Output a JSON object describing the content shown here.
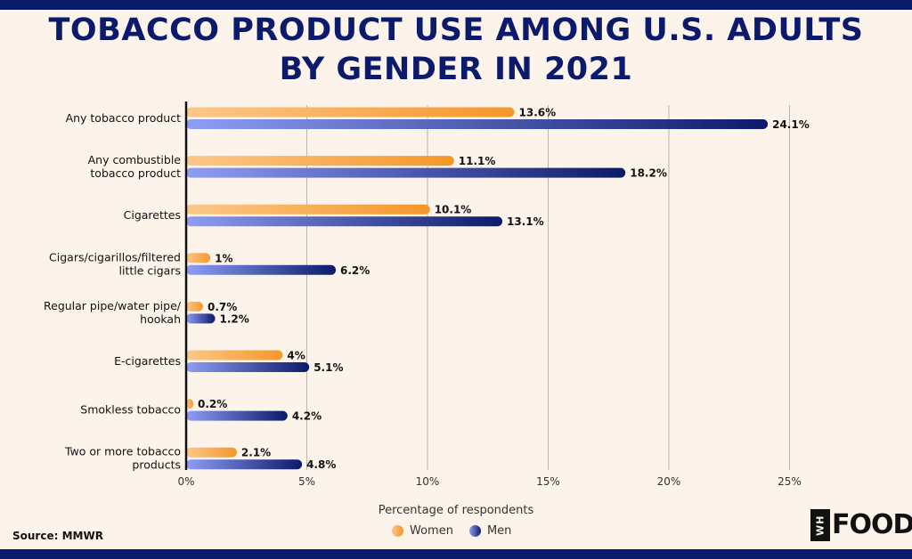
{
  "title": "TOBACCO PRODUCT USE AMONG U.S. ADULTS BY GENDER IN 2021",
  "source": "Source: MMWR",
  "brand": {
    "mark": "WH",
    "name": "FOODS"
  },
  "colors": {
    "background": "#fcf3ea",
    "title": "#0c1a6b",
    "women_light": "#fbc88a",
    "women_dark": "#f5972a",
    "men_light": "#8f9ef5",
    "men_dark": "#0c1a6b"
  },
  "chart_data": {
    "type": "bar",
    "orientation": "horizontal",
    "title": "TOBACCO PRODUCT USE AMONG U.S. ADULTS BY GENDER IN 2021",
    "xlabel": "Percentage of respondents",
    "ylabel": "",
    "xlim": [
      0,
      25
    ],
    "xticks": [
      0,
      5,
      10,
      15,
      20,
      25
    ],
    "xtick_labels": [
      "0%",
      "5%",
      "10%",
      "15%",
      "20%",
      "25%"
    ],
    "grid": "vertical",
    "legend_position": "bottom-center",
    "categories": [
      "Any tobacco product",
      "Any combustible tobacco product",
      "Cigarettes",
      "Cigars/cigarillos/filtered little cigars",
      "Regular pipe/water pipe/ hookah",
      "E-cigarettes",
      "Smokless tobacco",
      "Two or more tobacco products"
    ],
    "category_lines": [
      [
        "Any tobacco product"
      ],
      [
        "Any combustible",
        "tobacco product"
      ],
      [
        "Cigarettes"
      ],
      [
        "Cigars/cigarillos/filtered",
        "little cigars"
      ],
      [
        "Regular pipe/water pipe/",
        "hookah"
      ],
      [
        "E-cigarettes"
      ],
      [
        "Smokless tobacco"
      ],
      [
        "Two or more tobacco",
        "products"
      ]
    ],
    "series": [
      {
        "name": "Women",
        "values": [
          13.6,
          11.1,
          10.1,
          1,
          0.7,
          4,
          0.2,
          2.1
        ],
        "labels": [
          "13.6%",
          "11.1%",
          "10.1%",
          "1%",
          "0.7%",
          "4%",
          "0.2%",
          "2.1%"
        ]
      },
      {
        "name": "Men",
        "values": [
          24.1,
          18.2,
          13.1,
          6.2,
          1.2,
          5.1,
          4.2,
          4.8
        ],
        "labels": [
          "24.1%",
          "18.2%",
          "13.1%",
          "6.2%",
          "1.2%",
          "5.1%",
          "4.2%",
          "4.8%"
        ]
      }
    ]
  }
}
